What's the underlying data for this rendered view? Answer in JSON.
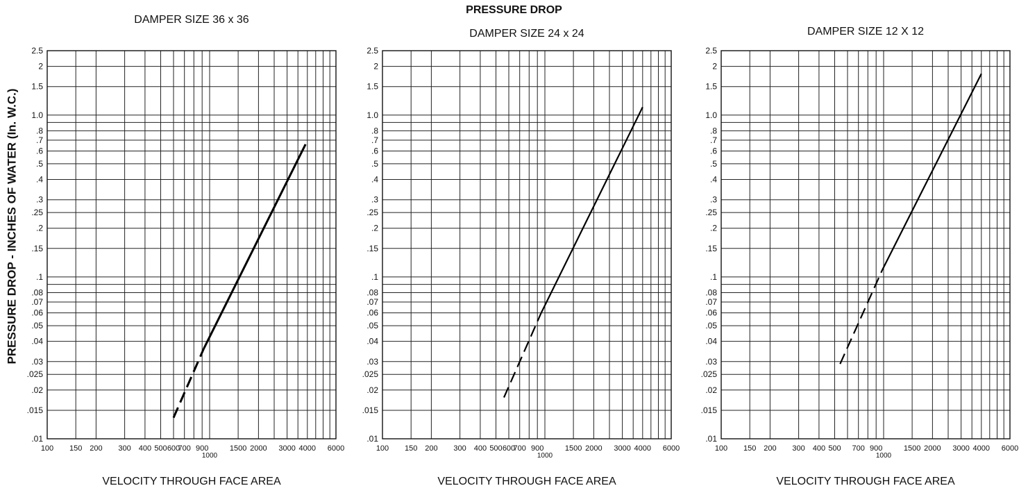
{
  "title": "PRESSURE DROP",
  "ylabel": "PRESSURE DROP - INCHES OF WATER (In. W.C.)",
  "chart_data": [
    {
      "type": "line",
      "title": "DAMPER SIZE 36 x 36",
      "xlabel": "VELOCITY THROUGH FACE AREA",
      "ylabel": "PRESSURE DROP - INCHES OF WATER (In. W.C.)",
      "xscale": "log",
      "yscale": "log",
      "xlim": [
        100,
        6000
      ],
      "ylim": [
        0.01,
        2.5
      ],
      "grid": true,
      "xticks": [
        "100",
        "150",
        "200",
        "300",
        "400",
        "500",
        "600",
        "700",
        "900",
        "1000",
        "1500",
        "2000",
        "2500",
        "3000",
        "4000",
        "5000",
        "6000"
      ],
      "xtick_labels": [
        {
          "v": 100,
          "t": "100"
        },
        {
          "v": 150,
          "t": "150"
        },
        {
          "v": 200,
          "t": "200"
        },
        {
          "v": 300,
          "t": "300"
        },
        {
          "v": 400,
          "t": "400"
        },
        {
          "v": 500,
          "t": "500"
        },
        {
          "v": 600,
          "t": "600"
        },
        {
          "v": 700,
          "t": "700"
        },
        {
          "v": 900,
          "t": "900"
        },
        {
          "v": 1000,
          "t": "1000",
          "low": true
        },
        {
          "v": 1500,
          "t": "1500"
        },
        {
          "v": 2000,
          "t": "2000"
        },
        {
          "v": 3000,
          "t": "3000"
        },
        {
          "v": 4000,
          "t": "4000"
        },
        {
          "v": 6000,
          "t": "6000"
        }
      ],
      "ytick_labels": [
        {
          "v": 2.5,
          "t": "2.5"
        },
        {
          "v": 2,
          "t": "2"
        },
        {
          "v": 1.5,
          "t": "1.5"
        },
        {
          "v": 1,
          "t": "1.0"
        },
        {
          "v": 0.8,
          "t": ".8"
        },
        {
          "v": 0.7,
          "t": ".7"
        },
        {
          "v": 0.6,
          "t": ".6"
        },
        {
          "v": 0.5,
          "t": ".5"
        },
        {
          "v": 0.4,
          "t": ".4"
        },
        {
          "v": 0.3,
          "t": ".3"
        },
        {
          "v": 0.25,
          "t": ".25"
        },
        {
          "v": 0.2,
          "t": ".2"
        },
        {
          "v": 0.15,
          "t": ".15"
        },
        {
          "v": 0.1,
          "t": ".1"
        },
        {
          "v": 0.08,
          "t": ".08"
        },
        {
          "v": 0.07,
          "t": ".07"
        },
        {
          "v": 0.06,
          "t": ".06"
        },
        {
          "v": 0.05,
          "t": ".05"
        },
        {
          "v": 0.04,
          "t": ".04"
        },
        {
          "v": 0.03,
          "t": ".03"
        },
        {
          "v": 0.025,
          "t": ".025"
        },
        {
          "v": 0.02,
          "t": ".02"
        },
        {
          "v": 0.015,
          "t": ".015"
        },
        {
          "v": 0.01,
          "t": ".01"
        }
      ],
      "series": [
        {
          "style": "dashed",
          "x": [
            600,
            920
          ],
          "y": [
            0.0135,
            0.036
          ]
        },
        {
          "style": "solid",
          "x": [
            920,
            3900
          ],
          "y": [
            0.036,
            0.66
          ]
        }
      ]
    },
    {
      "type": "line",
      "title": "DAMPER SIZE 24 x 24",
      "xlabel": "VELOCITY THROUGH FACE AREA",
      "xscale": "log",
      "yscale": "log",
      "xlim": [
        100,
        6000
      ],
      "ylim": [
        0.01,
        2.5
      ],
      "grid": true,
      "xtick_labels": [
        {
          "v": 100,
          "t": "100"
        },
        {
          "v": 150,
          "t": "150"
        },
        {
          "v": 200,
          "t": "200"
        },
        {
          "v": 300,
          "t": "300"
        },
        {
          "v": 400,
          "t": "400"
        },
        {
          "v": 500,
          "t": "500"
        },
        {
          "v": 600,
          "t": "600"
        },
        {
          "v": 700,
          "t": "700"
        },
        {
          "v": 900,
          "t": "900"
        },
        {
          "v": 1000,
          "t": "1000",
          "low": true
        },
        {
          "v": 1500,
          "t": "1500"
        },
        {
          "v": 2000,
          "t": "2000"
        },
        {
          "v": 3000,
          "t": "3000"
        },
        {
          "v": 4000,
          "t": "4000"
        },
        {
          "v": 6000,
          "t": "6000"
        }
      ],
      "ytick_labels": [
        {
          "v": 2.5,
          "t": "2.5"
        },
        {
          "v": 2,
          "t": "2"
        },
        {
          "v": 1.5,
          "t": "1.5"
        },
        {
          "v": 1,
          "t": "1.0"
        },
        {
          "v": 0.8,
          "t": ".8"
        },
        {
          "v": 0.7,
          "t": ".7"
        },
        {
          "v": 0.6,
          "t": ".6"
        },
        {
          "v": 0.5,
          "t": ".5"
        },
        {
          "v": 0.4,
          "t": ".4"
        },
        {
          "v": 0.3,
          "t": ".3"
        },
        {
          "v": 0.25,
          "t": ".25"
        },
        {
          "v": 0.2,
          "t": ".2"
        },
        {
          "v": 0.15,
          "t": ".15"
        },
        {
          "v": 0.1,
          "t": ".1"
        },
        {
          "v": 0.08,
          "t": ".08"
        },
        {
          "v": 0.07,
          "t": ".07"
        },
        {
          "v": 0.06,
          "t": ".06"
        },
        {
          "v": 0.05,
          "t": ".05"
        },
        {
          "v": 0.04,
          "t": ".04"
        },
        {
          "v": 0.03,
          "t": ".03"
        },
        {
          "v": 0.025,
          "t": ".025"
        },
        {
          "v": 0.02,
          "t": ".02"
        },
        {
          "v": 0.015,
          "t": ".015"
        },
        {
          "v": 0.01,
          "t": ".01"
        }
      ],
      "series": [
        {
          "style": "dashed",
          "x": [
            560,
            950
          ],
          "y": [
            0.018,
            0.06
          ]
        },
        {
          "style": "solid",
          "x": [
            950,
            4000
          ],
          "y": [
            0.06,
            1.12
          ]
        }
      ]
    },
    {
      "type": "line",
      "title": "DAMPER SIZE 12 X 12",
      "xlabel": "VELOCITY THROUGH FACE AREA",
      "xscale": "log",
      "yscale": "log",
      "xlim": [
        100,
        6000
      ],
      "ylim": [
        0.01,
        2.5
      ],
      "grid": true,
      "xtick_labels": [
        {
          "v": 100,
          "t": "100"
        },
        {
          "v": 150,
          "t": "150"
        },
        {
          "v": 200,
          "t": "200"
        },
        {
          "v": 300,
          "t": "300"
        },
        {
          "v": 400,
          "t": "400"
        },
        {
          "v": 500,
          "t": "500"
        },
        {
          "v": 700,
          "t": "700"
        },
        {
          "v": 900,
          "t": "900"
        },
        {
          "v": 1000,
          "t": "1000",
          "low": true
        },
        {
          "v": 1500,
          "t": "1500"
        },
        {
          "v": 2000,
          "t": "2000"
        },
        {
          "v": 3000,
          "t": "3000"
        },
        {
          "v": 4000,
          "t": "4000"
        },
        {
          "v": 6000,
          "t": "6000"
        }
      ],
      "ytick_labels": [
        {
          "v": 2.5,
          "t": "2.5"
        },
        {
          "v": 2,
          "t": "2"
        },
        {
          "v": 1.5,
          "t": "1.5"
        },
        {
          "v": 1,
          "t": "1.0"
        },
        {
          "v": 0.8,
          "t": ".8"
        },
        {
          "v": 0.7,
          "t": ".7"
        },
        {
          "v": 0.6,
          "t": ".6"
        },
        {
          "v": 0.5,
          "t": ".5"
        },
        {
          "v": 0.4,
          "t": ".4"
        },
        {
          "v": 0.3,
          "t": ".3"
        },
        {
          "v": 0.25,
          "t": ".25"
        },
        {
          "v": 0.2,
          "t": ".2"
        },
        {
          "v": 0.15,
          "t": ".15"
        },
        {
          "v": 0.1,
          "t": ".1"
        },
        {
          "v": 0.08,
          "t": ".08"
        },
        {
          "v": 0.07,
          "t": ".07"
        },
        {
          "v": 0.06,
          "t": ".06"
        },
        {
          "v": 0.05,
          "t": ".05"
        },
        {
          "v": 0.04,
          "t": ".04"
        },
        {
          "v": 0.03,
          "t": ".03"
        },
        {
          "v": 0.025,
          "t": ".025"
        },
        {
          "v": 0.02,
          "t": ".02"
        },
        {
          "v": 0.015,
          "t": ".015"
        },
        {
          "v": 0.01,
          "t": ".01"
        }
      ],
      "series": [
        {
          "style": "dashed",
          "x": [
            540,
            980
          ],
          "y": [
            0.029,
            0.11
          ]
        },
        {
          "style": "solid",
          "x": [
            980,
            4000
          ],
          "y": [
            0.11,
            1.8
          ]
        }
      ]
    }
  ]
}
